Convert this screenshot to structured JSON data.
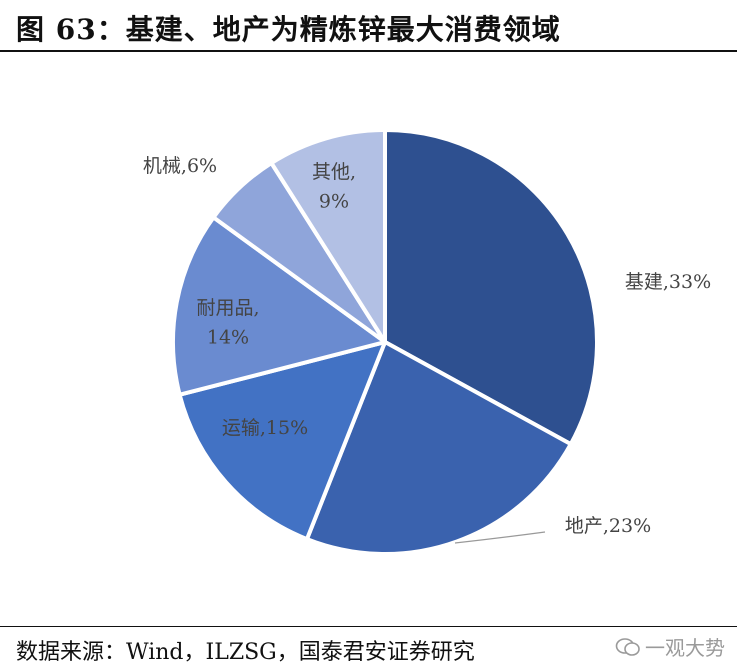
{
  "title": "图 63：基建、地产为精炼锌最大消费领域",
  "source": "数据来源：Wind，ILZSG，国泰君安证券研究",
  "watermark": "一观大势",
  "chart_data": {
    "type": "pie",
    "title": "",
    "start_angle_deg": 0,
    "slices": [
      {
        "name": "基建",
        "value": 33,
        "label_lines": [
          "基建,33%"
        ],
        "color": "#2E5090"
      },
      {
        "name": "地产",
        "value": 23,
        "label_lines": [
          "地产,23%"
        ],
        "color": "#3A62AE"
      },
      {
        "name": "运输",
        "value": 15,
        "label_lines": [
          "运输,15%"
        ],
        "color": "#4272C4"
      },
      {
        "name": "耐用品",
        "value": 14,
        "label_lines": [
          "耐用品,",
          "14%"
        ],
        "color": "#6A8BD0"
      },
      {
        "name": "机械",
        "value": 6,
        "label_lines": [
          "机械,6%"
        ],
        "color": "#8FA5DA"
      },
      {
        "name": "其他",
        "value": 9,
        "label_lines": [
          "其他,",
          "9%"
        ],
        "color": "#B2C0E4"
      }
    ]
  }
}
